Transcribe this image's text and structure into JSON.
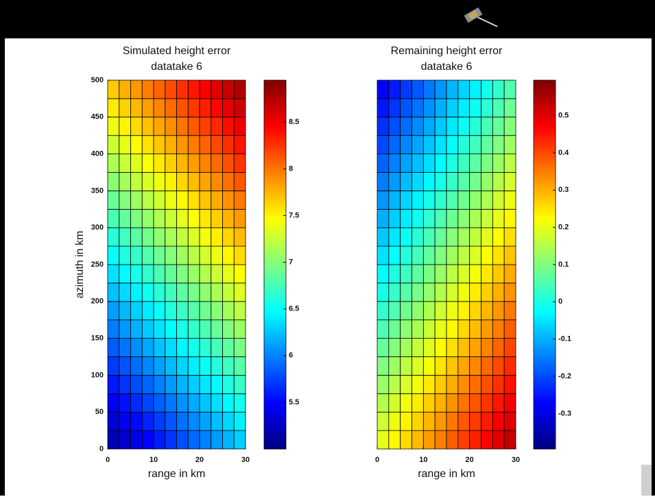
{
  "chart_data": [
    {
      "type": "heatmap",
      "title": "Simulated height error",
      "subtitle": "datatake 6",
      "xlabel": "range in km",
      "ylabel": "azimuth in km",
      "xlim": [
        0,
        30
      ],
      "ylim": [
        0,
        500
      ],
      "xticks": [
        0,
        10,
        20,
        30
      ],
      "yticks": [
        0,
        50,
        100,
        150,
        200,
        250,
        300,
        350,
        400,
        450,
        500
      ],
      "colormap": "jet",
      "edgecolor": "#000000",
      "clim": [
        5.0,
        8.95
      ],
      "cticks": [
        5.5,
        6,
        6.5,
        7,
        7.5,
        8,
        8.5
      ],
      "z": [
        [
          5.2,
          5.3,
          5.4,
          5.5,
          5.6,
          5.7,
          5.8,
          5.9,
          6.0,
          6.1,
          6.2,
          6.3
        ],
        [
          5.33,
          5.43,
          5.53,
          5.63,
          5.73,
          5.83,
          5.93,
          6.03,
          6.13,
          6.23,
          6.33,
          6.43
        ],
        [
          5.46,
          5.56,
          5.66,
          5.76,
          5.86,
          5.96,
          6.06,
          6.16,
          6.26,
          6.36,
          6.46,
          6.56
        ],
        [
          5.59,
          5.69,
          5.79,
          5.89,
          5.99,
          6.09,
          6.19,
          6.29,
          6.39,
          6.49,
          6.59,
          6.69
        ],
        [
          5.72,
          5.82,
          5.92,
          6.02,
          6.12,
          6.22,
          6.32,
          6.42,
          6.52,
          6.62,
          6.72,
          6.82
        ],
        [
          5.85,
          5.95,
          6.05,
          6.15,
          6.25,
          6.35,
          6.45,
          6.55,
          6.65,
          6.75,
          6.85,
          6.95
        ],
        [
          5.98,
          6.08,
          6.18,
          6.28,
          6.38,
          6.48,
          6.58,
          6.68,
          6.78,
          6.88,
          6.98,
          7.08
        ],
        [
          6.11,
          6.21,
          6.31,
          6.41,
          6.51,
          6.61,
          6.71,
          6.81,
          6.91,
          7.01,
          7.11,
          7.21
        ],
        [
          6.24,
          6.34,
          6.44,
          6.54,
          6.64,
          6.74,
          6.84,
          6.94,
          7.04,
          7.14,
          7.24,
          7.34
        ],
        [
          6.37,
          6.47,
          6.57,
          6.67,
          6.77,
          6.87,
          6.97,
          7.07,
          7.17,
          7.27,
          7.37,
          7.47
        ],
        [
          6.5,
          6.6,
          6.7,
          6.8,
          6.9,
          7.0,
          7.1,
          7.2,
          7.3,
          7.4,
          7.5,
          7.6
        ],
        [
          6.63,
          6.73,
          6.83,
          6.93,
          7.03,
          7.13,
          7.23,
          7.33,
          7.43,
          7.53,
          7.63,
          7.73
        ],
        [
          6.76,
          6.86,
          6.96,
          7.06,
          7.16,
          7.26,
          7.36,
          7.46,
          7.56,
          7.66,
          7.76,
          7.86
        ],
        [
          6.89,
          6.99,
          7.09,
          7.19,
          7.29,
          7.39,
          7.49,
          7.59,
          7.69,
          7.79,
          7.89,
          7.99
        ],
        [
          7.02,
          7.12,
          7.22,
          7.32,
          7.42,
          7.52,
          7.62,
          7.72,
          7.82,
          7.92,
          8.02,
          8.12
        ],
        [
          7.15,
          7.25,
          7.35,
          7.45,
          7.55,
          7.65,
          7.75,
          7.85,
          7.95,
          8.05,
          8.15,
          8.25
        ],
        [
          7.28,
          7.38,
          7.48,
          7.58,
          7.68,
          7.78,
          7.88,
          7.98,
          8.08,
          8.18,
          8.28,
          8.38
        ],
        [
          7.41,
          7.51,
          7.61,
          7.71,
          7.81,
          7.91,
          8.01,
          8.11,
          8.21,
          8.31,
          8.41,
          8.51
        ],
        [
          7.54,
          7.64,
          7.74,
          7.84,
          7.94,
          8.04,
          8.14,
          8.24,
          8.34,
          8.44,
          8.54,
          8.64
        ],
        [
          7.67,
          7.77,
          7.87,
          7.97,
          8.07,
          8.17,
          8.27,
          8.37,
          8.47,
          8.57,
          8.67,
          8.77
        ]
      ]
    },
    {
      "type": "heatmap",
      "title": "Remaining height error",
      "subtitle": "datatake 6",
      "xlabel": "range in km",
      "xlim": [
        0,
        30
      ],
      "ylim": [
        0,
        500
      ],
      "xticks": [
        0,
        10,
        20,
        30
      ],
      "colormap": "jet",
      "edgecolor": "#000000",
      "clim": [
        -0.395,
        0.595
      ],
      "cticks": [
        -0.3,
        -0.2,
        -0.1,
        0,
        0.1,
        0.2,
        0.3,
        0.4,
        0.5
      ],
      "z": [
        [
          0.2,
          0.23,
          0.26,
          0.29,
          0.32,
          0.35,
          0.38,
          0.41,
          0.44,
          0.47,
          0.5,
          0.53
        ],
        [
          0.175,
          0.205,
          0.235,
          0.265,
          0.295,
          0.325,
          0.355,
          0.385,
          0.415,
          0.445,
          0.475,
          0.505
        ],
        [
          0.15,
          0.18,
          0.21,
          0.24,
          0.27,
          0.3,
          0.33,
          0.36,
          0.39,
          0.42,
          0.45,
          0.48
        ],
        [
          0.125,
          0.155,
          0.185,
          0.215,
          0.245,
          0.275,
          0.305,
          0.335,
          0.365,
          0.395,
          0.425,
          0.455
        ],
        [
          0.1,
          0.13,
          0.16,
          0.19,
          0.22,
          0.25,
          0.28,
          0.31,
          0.34,
          0.37,
          0.4,
          0.43
        ],
        [
          0.075,
          0.105,
          0.135,
          0.165,
          0.195,
          0.225,
          0.255,
          0.285,
          0.315,
          0.345,
          0.375,
          0.405
        ],
        [
          0.05,
          0.08,
          0.11,
          0.14,
          0.17,
          0.2,
          0.23,
          0.26,
          0.29,
          0.32,
          0.35,
          0.38
        ],
        [
          0.025,
          0.055,
          0.085,
          0.115,
          0.145,
          0.175,
          0.205,
          0.235,
          0.265,
          0.295,
          0.325,
          0.355
        ],
        [
          0,
          0.03,
          0.06,
          0.09,
          0.12,
          0.15,
          0.18,
          0.21,
          0.24,
          0.27,
          0.3,
          0.33
        ],
        [
          -0.025,
          0.005,
          0.035,
          0.065,
          0.095,
          0.125,
          0.155,
          0.185,
          0.215,
          0.245,
          0.275,
          0.305
        ],
        [
          -0.05,
          -0.02,
          0.01,
          0.04,
          0.07,
          0.1,
          0.13,
          0.16,
          0.19,
          0.22,
          0.25,
          0.28
        ],
        [
          -0.075,
          -0.045,
          -0.015,
          0.015,
          0.045,
          0.075,
          0.105,
          0.135,
          0.165,
          0.195,
          0.225,
          0.255
        ],
        [
          -0.1,
          -0.07,
          -0.04,
          -0.01,
          0.02,
          0.05,
          0.08,
          0.11,
          0.14,
          0.17,
          0.2,
          0.23
        ],
        [
          -0.125,
          -0.095,
          -0.065,
          -0.035,
          -0.005,
          0.025,
          0.055,
          0.085,
          0.115,
          0.145,
          0.175,
          0.205
        ],
        [
          -0.15,
          -0.12,
          -0.09,
          -0.06,
          -0.03,
          0,
          0.03,
          0.06,
          0.09,
          0.12,
          0.15,
          0.18
        ],
        [
          -0.175,
          -0.145,
          -0.115,
          -0.085,
          -0.055,
          -0.025,
          0.005,
          0.035,
          0.065,
          0.095,
          0.125,
          0.155
        ],
        [
          -0.2,
          -0.17,
          -0.14,
          -0.11,
          -0.08,
          -0.05,
          -0.02,
          0.01,
          0.04,
          0.07,
          0.1,
          0.13
        ],
        [
          -0.225,
          -0.195,
          -0.165,
          -0.135,
          -0.105,
          -0.075,
          -0.045,
          -0.015,
          0.015,
          0.045,
          0.075,
          0.105
        ],
        [
          -0.25,
          -0.22,
          -0.19,
          -0.16,
          -0.13,
          -0.1,
          -0.07,
          -0.04,
          -0.01,
          0.02,
          0.05,
          0.08
        ],
        [
          -0.275,
          -0.245,
          -0.215,
          -0.185,
          -0.155,
          -0.125,
          -0.095,
          -0.065,
          -0.035,
          -0.005,
          0.025,
          0.055
        ]
      ]
    }
  ]
}
